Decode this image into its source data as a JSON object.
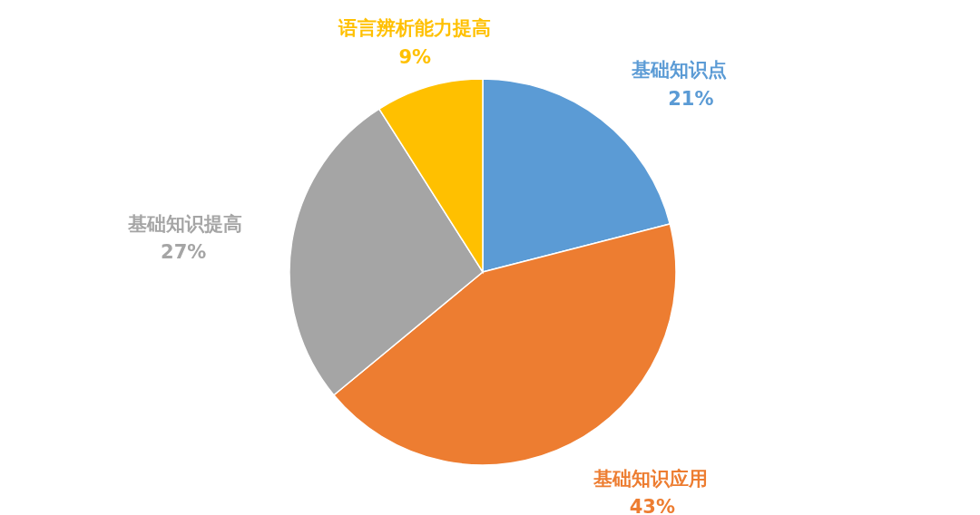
{
  "chart_data": {
    "type": "pie",
    "categories": [
      "基础知识点",
      "基础知识应用",
      "基础知识提高",
      "语言辨析能力提高"
    ],
    "values": [
      21,
      43,
      27,
      9
    ],
    "colors": [
      "#5b9bd5",
      "#ed7d31",
      "#a5a5a5",
      "#ffc000"
    ],
    "value_labels": [
      "21%",
      "43%",
      "27%",
      "9%"
    ]
  }
}
